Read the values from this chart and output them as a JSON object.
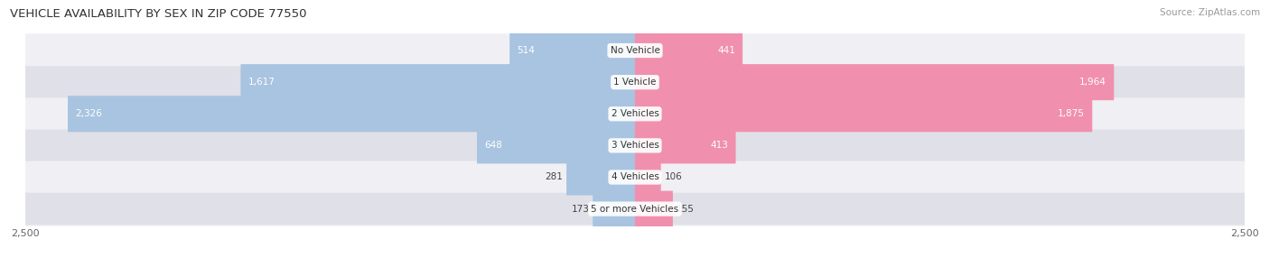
{
  "title": "VEHICLE AVAILABILITY BY SEX IN ZIP CODE 77550",
  "source": "Source: ZipAtlas.com",
  "categories": [
    "No Vehicle",
    "1 Vehicle",
    "2 Vehicles",
    "3 Vehicles",
    "4 Vehicles",
    "5 or more Vehicles"
  ],
  "male_values": [
    514,
    1617,
    2326,
    648,
    281,
    173
  ],
  "female_values": [
    441,
    1964,
    1875,
    413,
    106,
    155
  ],
  "male_color": "#a8c4e0",
  "female_color": "#f090ae",
  "male_legend_color": "#6699cc",
  "female_legend_color": "#ee6688",
  "bar_height": 0.62,
  "xlim": 2500,
  "row_bg_light": "#f0f0f4",
  "row_bg_dark": "#e0e0e8",
  "title_fontsize": 9.5,
  "source_fontsize": 7.5,
  "label_fontsize": 7.5,
  "category_fontsize": 7.5,
  "axis_label_fontsize": 8,
  "legend_fontsize": 8.5,
  "large_threshold": 400
}
